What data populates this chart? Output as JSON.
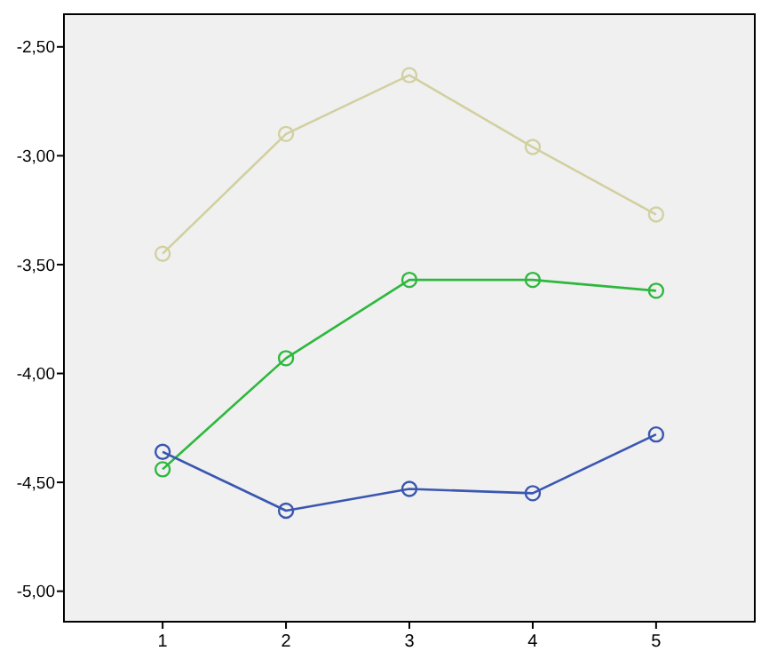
{
  "chart_data": {
    "type": "line",
    "x": [
      1,
      2,
      3,
      4,
      5
    ],
    "xlim": [
      0.2,
      5.8
    ],
    "xticks": [
      1,
      2,
      3,
      4,
      5
    ],
    "ylim": [
      -5.14,
      -2.35
    ],
    "yticks": [
      {
        "value": -2.5,
        "label": "-2,50"
      },
      {
        "value": -3,
        "label": "-3,00"
      },
      {
        "value": -3.5,
        "label": "-3,50"
      },
      {
        "value": -4,
        "label": "-4,00"
      },
      {
        "value": -4.5,
        "label": "-4,50"
      },
      {
        "value": -5,
        "label": "-5,00"
      }
    ],
    "marker": "circle",
    "line_style": "solid",
    "grid": false,
    "series": [
      {
        "color": "#d2d0a0",
        "values": [
          -3.45,
          -2.9,
          -2.63,
          -2.96,
          -3.27
        ]
      },
      {
        "color": "#2db83d",
        "values": [
          -4.44,
          -3.93,
          -3.57,
          -3.57,
          -3.62
        ]
      },
      {
        "color": "#3a56b0",
        "values": [
          -4.36,
          -4.63,
          -4.53,
          -4.55,
          -4.28
        ]
      }
    ]
  }
}
